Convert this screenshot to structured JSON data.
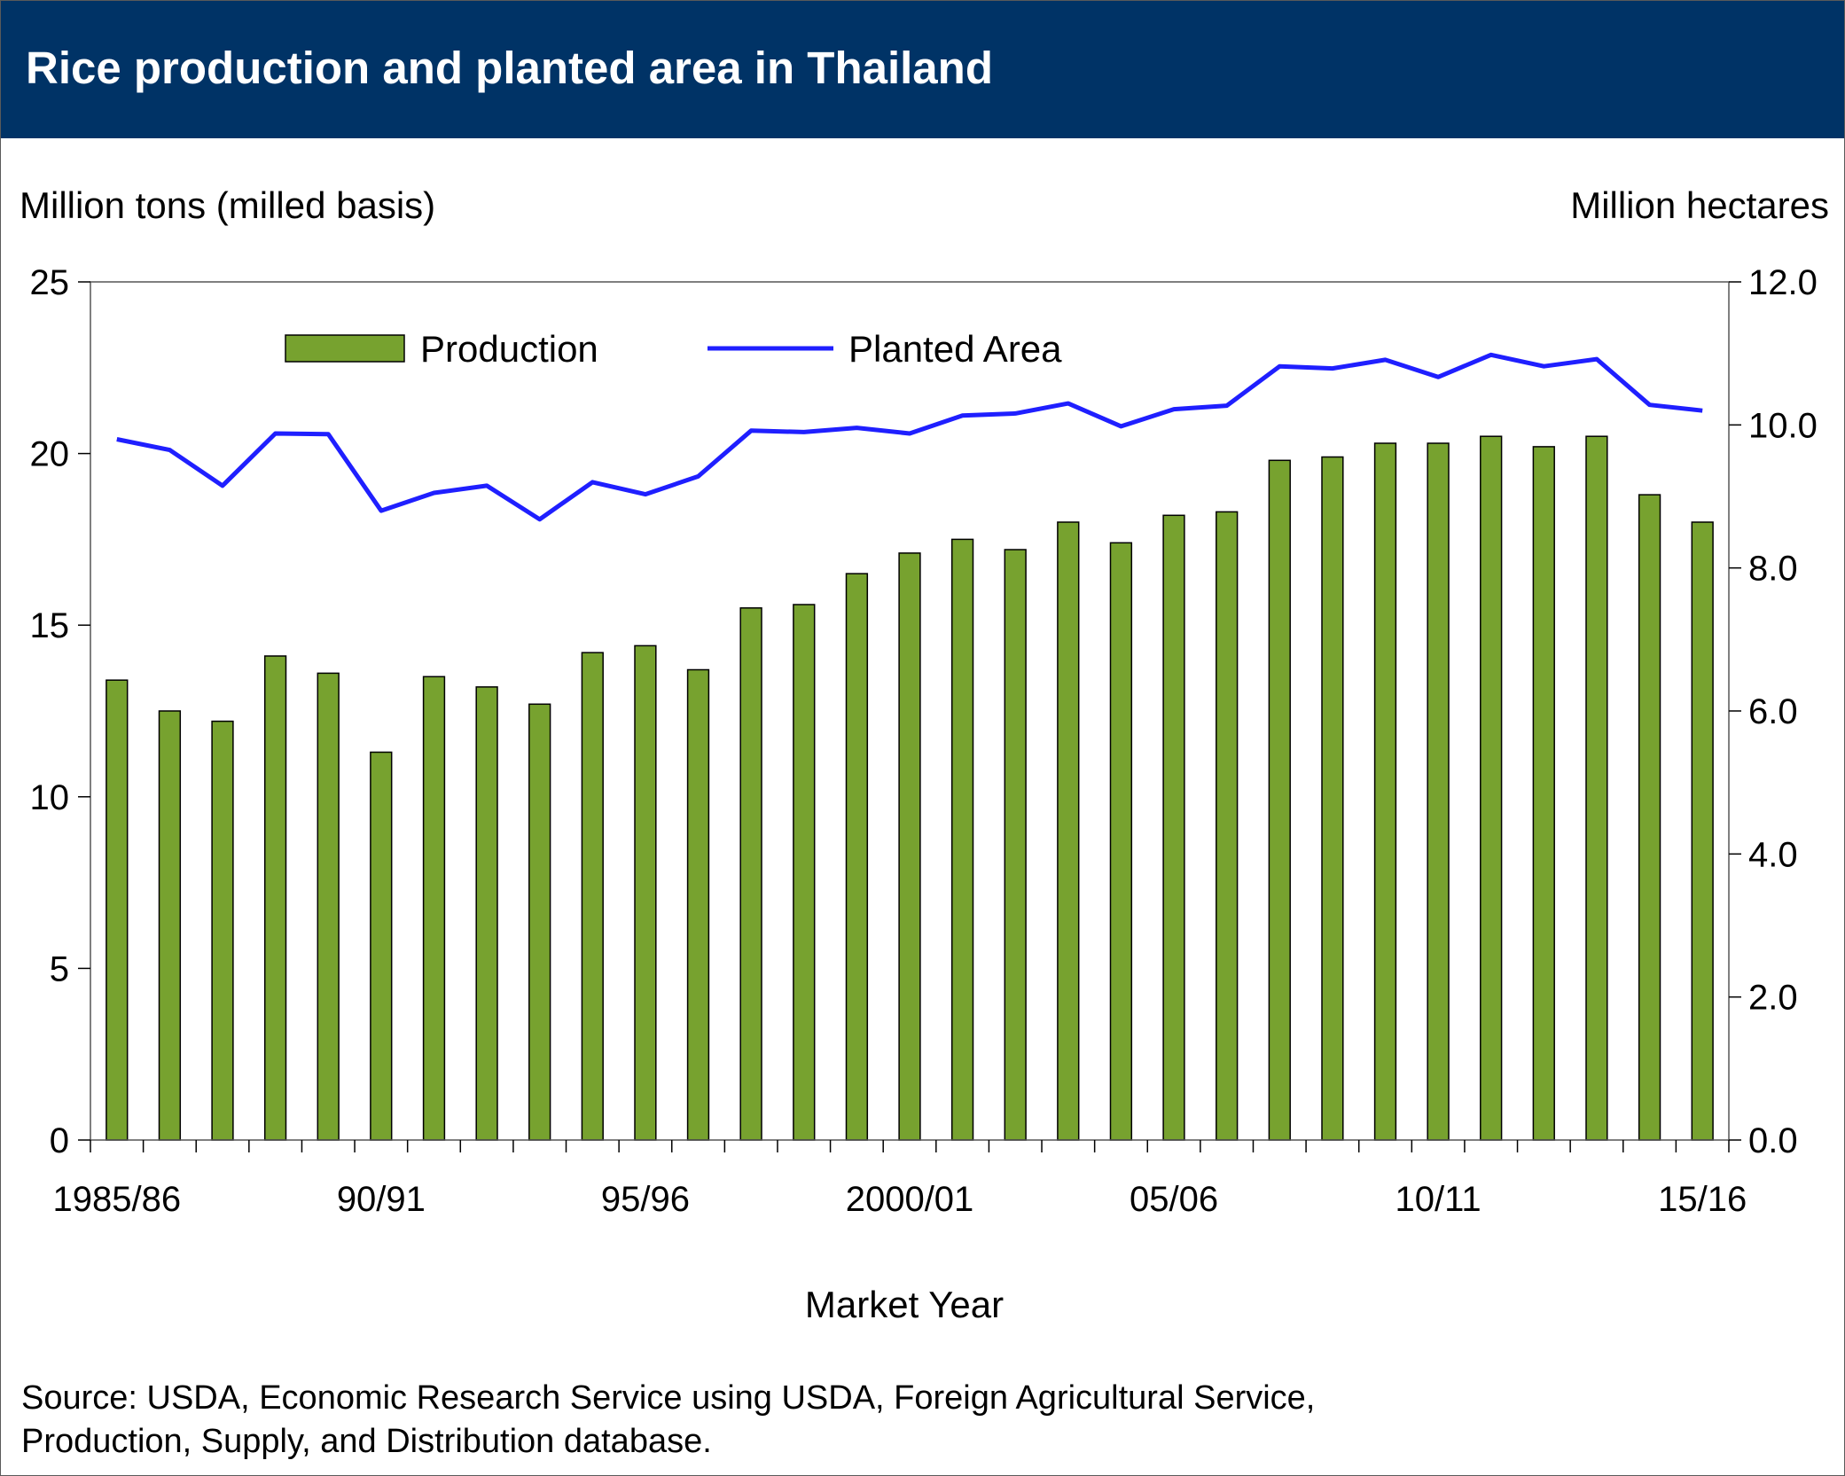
{
  "header": {
    "title": "Rice production and planted area in Thailand"
  },
  "footer": {
    "source_line1": "Source:  USDA, Economic Research Service using USDA, Foreign Agricultural Service,",
    "source_line2": "Production, Supply, and Distribution database."
  },
  "colors": {
    "title_bar": "#003366",
    "bar_fill": "#77a22f",
    "line": "#1f1fff"
  },
  "chart_data": {
    "type": "bar",
    "title": "Rice production and planted area in Thailand",
    "xlabel": "Market Year",
    "ylabel": "Million tons (milled basis)",
    "ylabel_right": "Million hectares",
    "ylim": [
      0,
      25
    ],
    "ylim_right": [
      0,
      12
    ],
    "yticks": [
      "0",
      "5",
      "10",
      "15",
      "20",
      "25"
    ],
    "yticks_right": [
      "0.0",
      "2.0",
      "4.0",
      "6.0",
      "8.0",
      "10.0",
      "12.0"
    ],
    "xtick_labels": [
      "1985/86",
      "90/91",
      "95/96",
      "2000/01",
      "05/06",
      "10/11",
      "15/16"
    ],
    "legend_position": "top-left",
    "grid": false,
    "categories": [
      "1985/86",
      "1986/87",
      "1987/88",
      "1988/89",
      "1989/90",
      "1990/91",
      "1991/92",
      "1992/93",
      "1993/94",
      "1994/95",
      "1995/96",
      "1996/97",
      "1997/98",
      "1998/99",
      "1999/00",
      "2000/01",
      "2001/02",
      "2002/03",
      "2003/04",
      "2004/05",
      "2005/06",
      "2006/07",
      "2007/08",
      "2008/09",
      "2009/10",
      "2010/11",
      "2011/12",
      "2012/13",
      "2013/14",
      "2014/15",
      "2015/16"
    ],
    "series": [
      {
        "name": "Production",
        "type": "bar",
        "axis": "left",
        "values": [
          13.4,
          12.5,
          12.2,
          14.1,
          13.6,
          11.3,
          13.5,
          13.2,
          12.7,
          14.2,
          14.4,
          13.7,
          15.5,
          15.6,
          16.5,
          17.1,
          17.5,
          17.2,
          18.0,
          17.4,
          18.2,
          18.3,
          19.8,
          19.9,
          20.3,
          20.3,
          20.5,
          20.2,
          20.5,
          18.8,
          18.0
        ]
      },
      {
        "name": "Planted Area",
        "type": "line",
        "axis": "right",
        "values": [
          9.8,
          9.65,
          9.15,
          9.88,
          9.87,
          8.8,
          9.05,
          9.15,
          8.68,
          9.2,
          9.03,
          9.28,
          9.92,
          9.9,
          9.96,
          9.88,
          10.13,
          10.16,
          10.3,
          9.98,
          10.22,
          10.27,
          10.82,
          10.79,
          10.91,
          10.67,
          10.98,
          10.82,
          10.92,
          10.28,
          10.2
        ]
      }
    ]
  }
}
